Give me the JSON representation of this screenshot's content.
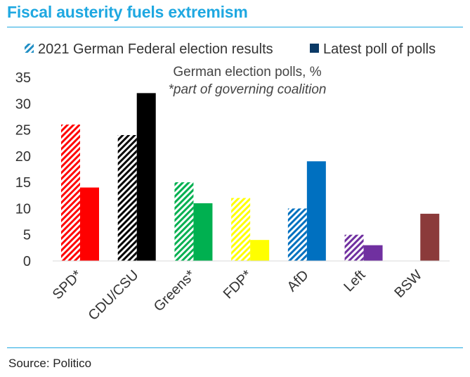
{
  "header": {
    "title": "Fiscal austerity fuels extremism"
  },
  "footer": {
    "source": "Source: Politico"
  },
  "chart_data": {
    "type": "bar",
    "title": "German election polls, %",
    "subtitle": "*part of governing coalition",
    "categories": [
      "SPD*",
      "CDU/CSU",
      "Greens*",
      "FDP*",
      "AfD",
      "Left",
      "BSW"
    ],
    "category_colors": [
      "#ff0000",
      "#000000",
      "#00b050",
      "#ffff00",
      "#0070c0",
      "#7030a0",
      "#8b3a3a"
    ],
    "series": [
      {
        "name": "2021 German Federal election results",
        "style": "hatched",
        "values": [
          26,
          24,
          15,
          12,
          10,
          5,
          null
        ]
      },
      {
        "name": "Latest poll of polls",
        "style": "solid",
        "values": [
          14,
          32,
          11,
          4,
          19,
          3,
          9
        ]
      }
    ],
    "legend_colors": [
      "#1f8ec4",
      "#0b3a66"
    ],
    "yticks": [
      0,
      5,
      10,
      15,
      20,
      25,
      30,
      35
    ],
    "ylim": [
      0,
      35
    ],
    "xlabel": "",
    "ylabel": "",
    "grid": false,
    "legend_position": "top"
  }
}
